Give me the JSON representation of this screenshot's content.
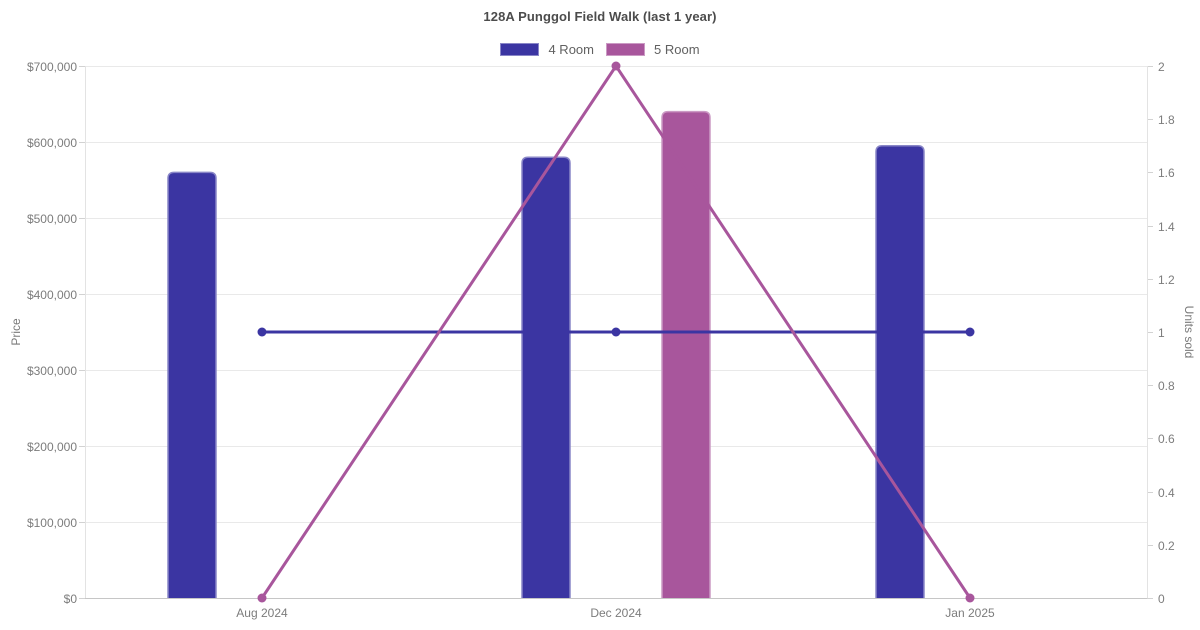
{
  "chart_data": {
    "type": "mixed",
    "title": "128A Punggol Field Walk (last 1 year)",
    "categories": [
      "Aug 2024",
      "Dec 2024",
      "Jan 2025"
    ],
    "y_left": {
      "label": "Price",
      "min": 0,
      "max": 700000,
      "tick_step": 100000,
      "tick_labels": [
        "$0",
        "$100,000",
        "$200,000",
        "$300,000",
        "$400,000",
        "$500,000",
        "$600,000",
        "$700,000"
      ]
    },
    "y_right": {
      "label": "Units sold",
      "min": 0,
      "max": 2,
      "tick_step": 0.2,
      "tick_labels": [
        "0",
        "0.2",
        "0.4",
        "0.6",
        "0.8",
        "1",
        "1.2",
        "1.4",
        "1.6",
        "1.8",
        "2"
      ]
    },
    "series": [
      {
        "name": "4 Room",
        "type": "bar",
        "axis": "left",
        "color": "#3b35a2",
        "values": [
          560000,
          580000,
          595000
        ]
      },
      {
        "name": "5 Room",
        "type": "bar",
        "axis": "left",
        "color": "#a8569c",
        "values": [
          null,
          640000,
          null
        ]
      },
      {
        "name": "4 Room",
        "type": "line",
        "axis": "right",
        "color": "#3b35a2",
        "values": [
          1,
          1,
          1
        ]
      },
      {
        "name": "5 Room",
        "type": "line",
        "axis": "right",
        "color": "#a8569c",
        "values": [
          0,
          2,
          0
        ]
      }
    ],
    "grid": {
      "horizontal": true,
      "vertical": false
    },
    "legend_position": "top"
  }
}
